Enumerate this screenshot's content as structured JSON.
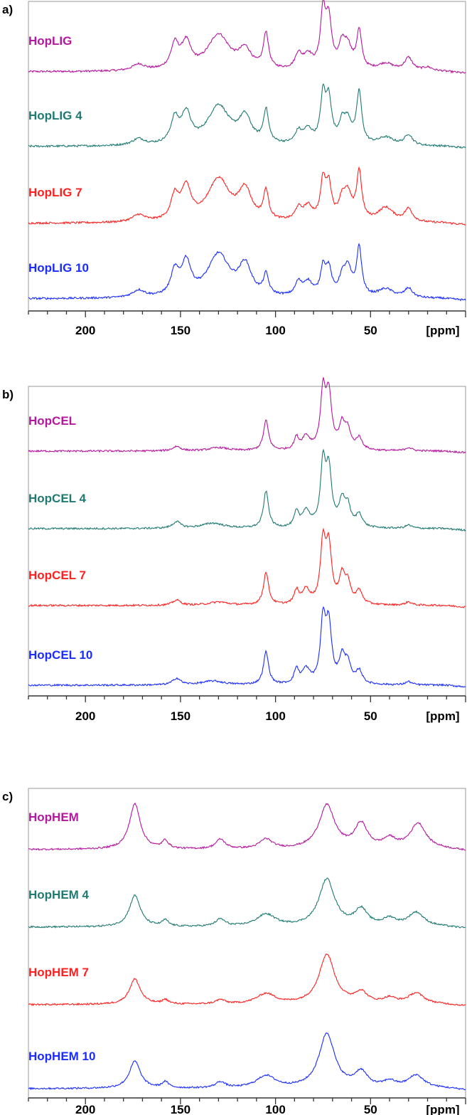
{
  "figure": {
    "colors": {
      "magenta": "#b5179e",
      "teal": "#1f7a72",
      "red": "#ff2020",
      "blue": "#1a2cff",
      "axis": "#333333",
      "frame": "#9a9a9a"
    }
  },
  "chart_data": [
    {
      "type": "line",
      "panel_label": "a)",
      "xlabel": "[ppm]",
      "xlim": [
        230,
        0
      ],
      "x_ticks": [
        200,
        150,
        100,
        50
      ],
      "x_tick_labels": [
        "200",
        "150",
        "100",
        "50"
      ],
      "x_reversed": true,
      "y_axis": "none",
      "series": [
        {
          "name": "HopLIG",
          "color": "#b5179e",
          "peaks": [
            [
              172,
              0.09,
              4
            ],
            [
              153,
              0.34,
              2.5
            ],
            [
              147,
              0.36,
              3
            ],
            [
              130,
              0.5,
              7
            ],
            [
              116,
              0.26,
              4
            ],
            [
              105,
              0.5,
              1.6
            ],
            [
              88,
              0.2,
              2
            ],
            [
              83,
              0.2,
              3
            ],
            [
              75,
              0.78,
              1.6
            ],
            [
              72,
              0.66,
              1.8
            ],
            [
              65,
              0.3,
              2
            ],
            [
              62,
              0.3,
              2.5
            ],
            [
              56,
              0.53,
              1.6
            ],
            [
              42,
              0.1,
              5
            ],
            [
              30,
              0.18,
              2.5
            ],
            [
              20,
              0.05,
              3
            ]
          ]
        },
        {
          "name": "HopLIG 4",
          "color": "#1f7a72",
          "peaks": [
            [
              172,
              0.09,
              4
            ],
            [
              153,
              0.34,
              2.5
            ],
            [
              147,
              0.41,
              3
            ],
            [
              130,
              0.55,
              7
            ],
            [
              116,
              0.36,
              4
            ],
            [
              105,
              0.46,
              1.6
            ],
            [
              88,
              0.16,
              2
            ],
            [
              83,
              0.2,
              3
            ],
            [
              75,
              0.64,
              1.6
            ],
            [
              72,
              0.6,
              1.8
            ],
            [
              65,
              0.25,
              2
            ],
            [
              62,
              0.3,
              2.5
            ],
            [
              56,
              0.72,
              1.6
            ],
            [
              42,
              0.11,
              5
            ],
            [
              30,
              0.15,
              2.5
            ]
          ]
        },
        {
          "name": "HopLIG 7",
          "color": "#ff2020",
          "peaks": [
            [
              172,
              0.1,
              4
            ],
            [
              153,
              0.33,
              2.5
            ],
            [
              147,
              0.45,
              3
            ],
            [
              130,
              0.6,
              7
            ],
            [
              116,
              0.42,
              4
            ],
            [
              105,
              0.4,
              1.6
            ],
            [
              88,
              0.16,
              2
            ],
            [
              83,
              0.2,
              3
            ],
            [
              75,
              0.52,
              1.6
            ],
            [
              72,
              0.48,
              1.8
            ],
            [
              65,
              0.25,
              2
            ],
            [
              62,
              0.35,
              2.5
            ],
            [
              56,
              0.68,
              1.6
            ],
            [
              42,
              0.2,
              5
            ],
            [
              30,
              0.18,
              2.5
            ]
          ]
        },
        {
          "name": "HopLIG 10",
          "color": "#1a2cff",
          "peaks": [
            [
              172,
              0.1,
              4
            ],
            [
              153,
              0.33,
              2.5
            ],
            [
              147,
              0.46,
              3
            ],
            [
              130,
              0.6,
              7
            ],
            [
              116,
              0.42,
              4
            ],
            [
              105,
              0.28,
              1.6
            ],
            [
              88,
              0.18,
              2
            ],
            [
              83,
              0.2,
              3
            ],
            [
              75,
              0.38,
              1.6
            ],
            [
              72,
              0.36,
              1.8
            ],
            [
              65,
              0.2,
              2
            ],
            [
              62,
              0.38,
              2.5
            ],
            [
              56,
              0.67,
              1.6
            ],
            [
              42,
              0.12,
              5
            ],
            [
              30,
              0.13,
              2.5
            ]
          ]
        }
      ]
    },
    {
      "type": "line",
      "panel_label": "b)",
      "xlabel": "[ppm]",
      "xlim": [
        230,
        0
      ],
      "x_ticks": [
        200,
        150,
        100,
        50
      ],
      "x_tick_labels": [
        "200",
        "150",
        "100",
        "50"
      ],
      "x_reversed": true,
      "y_axis": "none",
      "series": [
        {
          "name": "HopCEL",
          "color": "#b5179e",
          "peaks": [
            [
              152,
              0.07,
              2.5
            ],
            [
              130,
              0.05,
              6
            ],
            [
              105,
              0.46,
              1.6
            ],
            [
              89,
              0.18,
              1.4
            ],
            [
              84,
              0.2,
              2.5
            ],
            [
              75,
              0.85,
              1.6
            ],
            [
              72,
              0.82,
              1.8
            ],
            [
              65,
              0.36,
              1.8
            ],
            [
              62,
              0.28,
              1.8
            ],
            [
              56,
              0.18,
              2
            ],
            [
              30,
              0.05,
              2
            ]
          ]
        },
        {
          "name": "HopCEL 4",
          "color": "#1f7a72",
          "peaks": [
            [
              152,
              0.1,
              2.5
            ],
            [
              133,
              0.08,
              7
            ],
            [
              105,
              0.56,
              1.6
            ],
            [
              89,
              0.22,
              1.4
            ],
            [
              84,
              0.25,
              2.5
            ],
            [
              75,
              0.92,
              1.6
            ],
            [
              72,
              0.85,
              1.8
            ],
            [
              65,
              0.38,
              1.8
            ],
            [
              62,
              0.3,
              1.8
            ],
            [
              56,
              0.2,
              2
            ],
            [
              30,
              0.05,
              2
            ]
          ]
        },
        {
          "name": "HopCEL 7",
          "color": "#ff2020",
          "peaks": [
            [
              152,
              0.08,
              2.5
            ],
            [
              130,
              0.05,
              6
            ],
            [
              105,
              0.5,
              1.6
            ],
            [
              89,
              0.2,
              1.4
            ],
            [
              84,
              0.22,
              2.5
            ],
            [
              75,
              0.9,
              1.6
            ],
            [
              72,
              0.85,
              1.8
            ],
            [
              65,
              0.4,
              1.8
            ],
            [
              62,
              0.3,
              1.8
            ],
            [
              56,
              0.2,
              2
            ],
            [
              30,
              0.05,
              2
            ]
          ]
        },
        {
          "name": "HopCEL 10",
          "color": "#1a2cff",
          "peaks": [
            [
              152,
              0.1,
              2.5
            ],
            [
              133,
              0.06,
              7
            ],
            [
              105,
              0.5,
              1.6
            ],
            [
              89,
              0.22,
              1.4
            ],
            [
              84,
              0.22,
              2.5
            ],
            [
              75,
              0.92,
              1.6
            ],
            [
              72,
              0.88,
              1.8
            ],
            [
              65,
              0.38,
              1.8
            ],
            [
              62,
              0.3,
              1.8
            ],
            [
              56,
              0.2,
              2
            ],
            [
              30,
              0.05,
              2
            ]
          ]
        }
      ]
    },
    {
      "type": "line",
      "panel_label": "c)",
      "xlabel": "[ppm]",
      "xlim": [
        230,
        0
      ],
      "x_ticks": [
        200,
        150,
        100,
        50
      ],
      "x_tick_labels": [
        "200",
        "150",
        "100",
        "50"
      ],
      "x_reversed": true,
      "y_axis": "none",
      "series": [
        {
          "name": "HopHEM",
          "color": "#b5179e",
          "peaks": [
            [
              174,
              0.75,
              3.5
            ],
            [
              158,
              0.13,
              2
            ],
            [
              129,
              0.16,
              3
            ],
            [
              105,
              0.16,
              4
            ],
            [
              73,
              0.72,
              5
            ],
            [
              55,
              0.4,
              4
            ],
            [
              40,
              0.15,
              4
            ],
            [
              25,
              0.42,
              5
            ]
          ]
        },
        {
          "name": "HopHEM 4",
          "color": "#1f7a72",
          "peaks": [
            [
              174,
              0.52,
              3.5
            ],
            [
              158,
              0.1,
              2
            ],
            [
              129,
              0.12,
              3
            ],
            [
              105,
              0.2,
              6
            ],
            [
              73,
              0.78,
              5
            ],
            [
              55,
              0.27,
              4
            ],
            [
              40,
              0.12,
              4
            ],
            [
              26,
              0.23,
              5
            ]
          ]
        },
        {
          "name": "HopHEM 7",
          "color": "#ff2020",
          "peaks": [
            [
              174,
              0.42,
              3.5
            ],
            [
              158,
              0.07,
              2
            ],
            [
              129,
              0.07,
              3
            ],
            [
              105,
              0.17,
              6
            ],
            [
              73,
              0.82,
              5
            ],
            [
              55,
              0.18,
              4
            ],
            [
              40,
              0.09,
              4
            ],
            [
              26,
              0.18,
              5
            ]
          ]
        },
        {
          "name": "HopHEM 10",
          "color": "#1a2cff",
          "peaks": [
            [
              174,
              0.45,
              3.5
            ],
            [
              158,
              0.1,
              2
            ],
            [
              129,
              0.1,
              3
            ],
            [
              105,
              0.2,
              6
            ],
            [
              73,
              0.9,
              5
            ],
            [
              55,
              0.25,
              4
            ],
            [
              40,
              0.1,
              4
            ],
            [
              26,
              0.21,
              5
            ]
          ]
        }
      ]
    }
  ]
}
